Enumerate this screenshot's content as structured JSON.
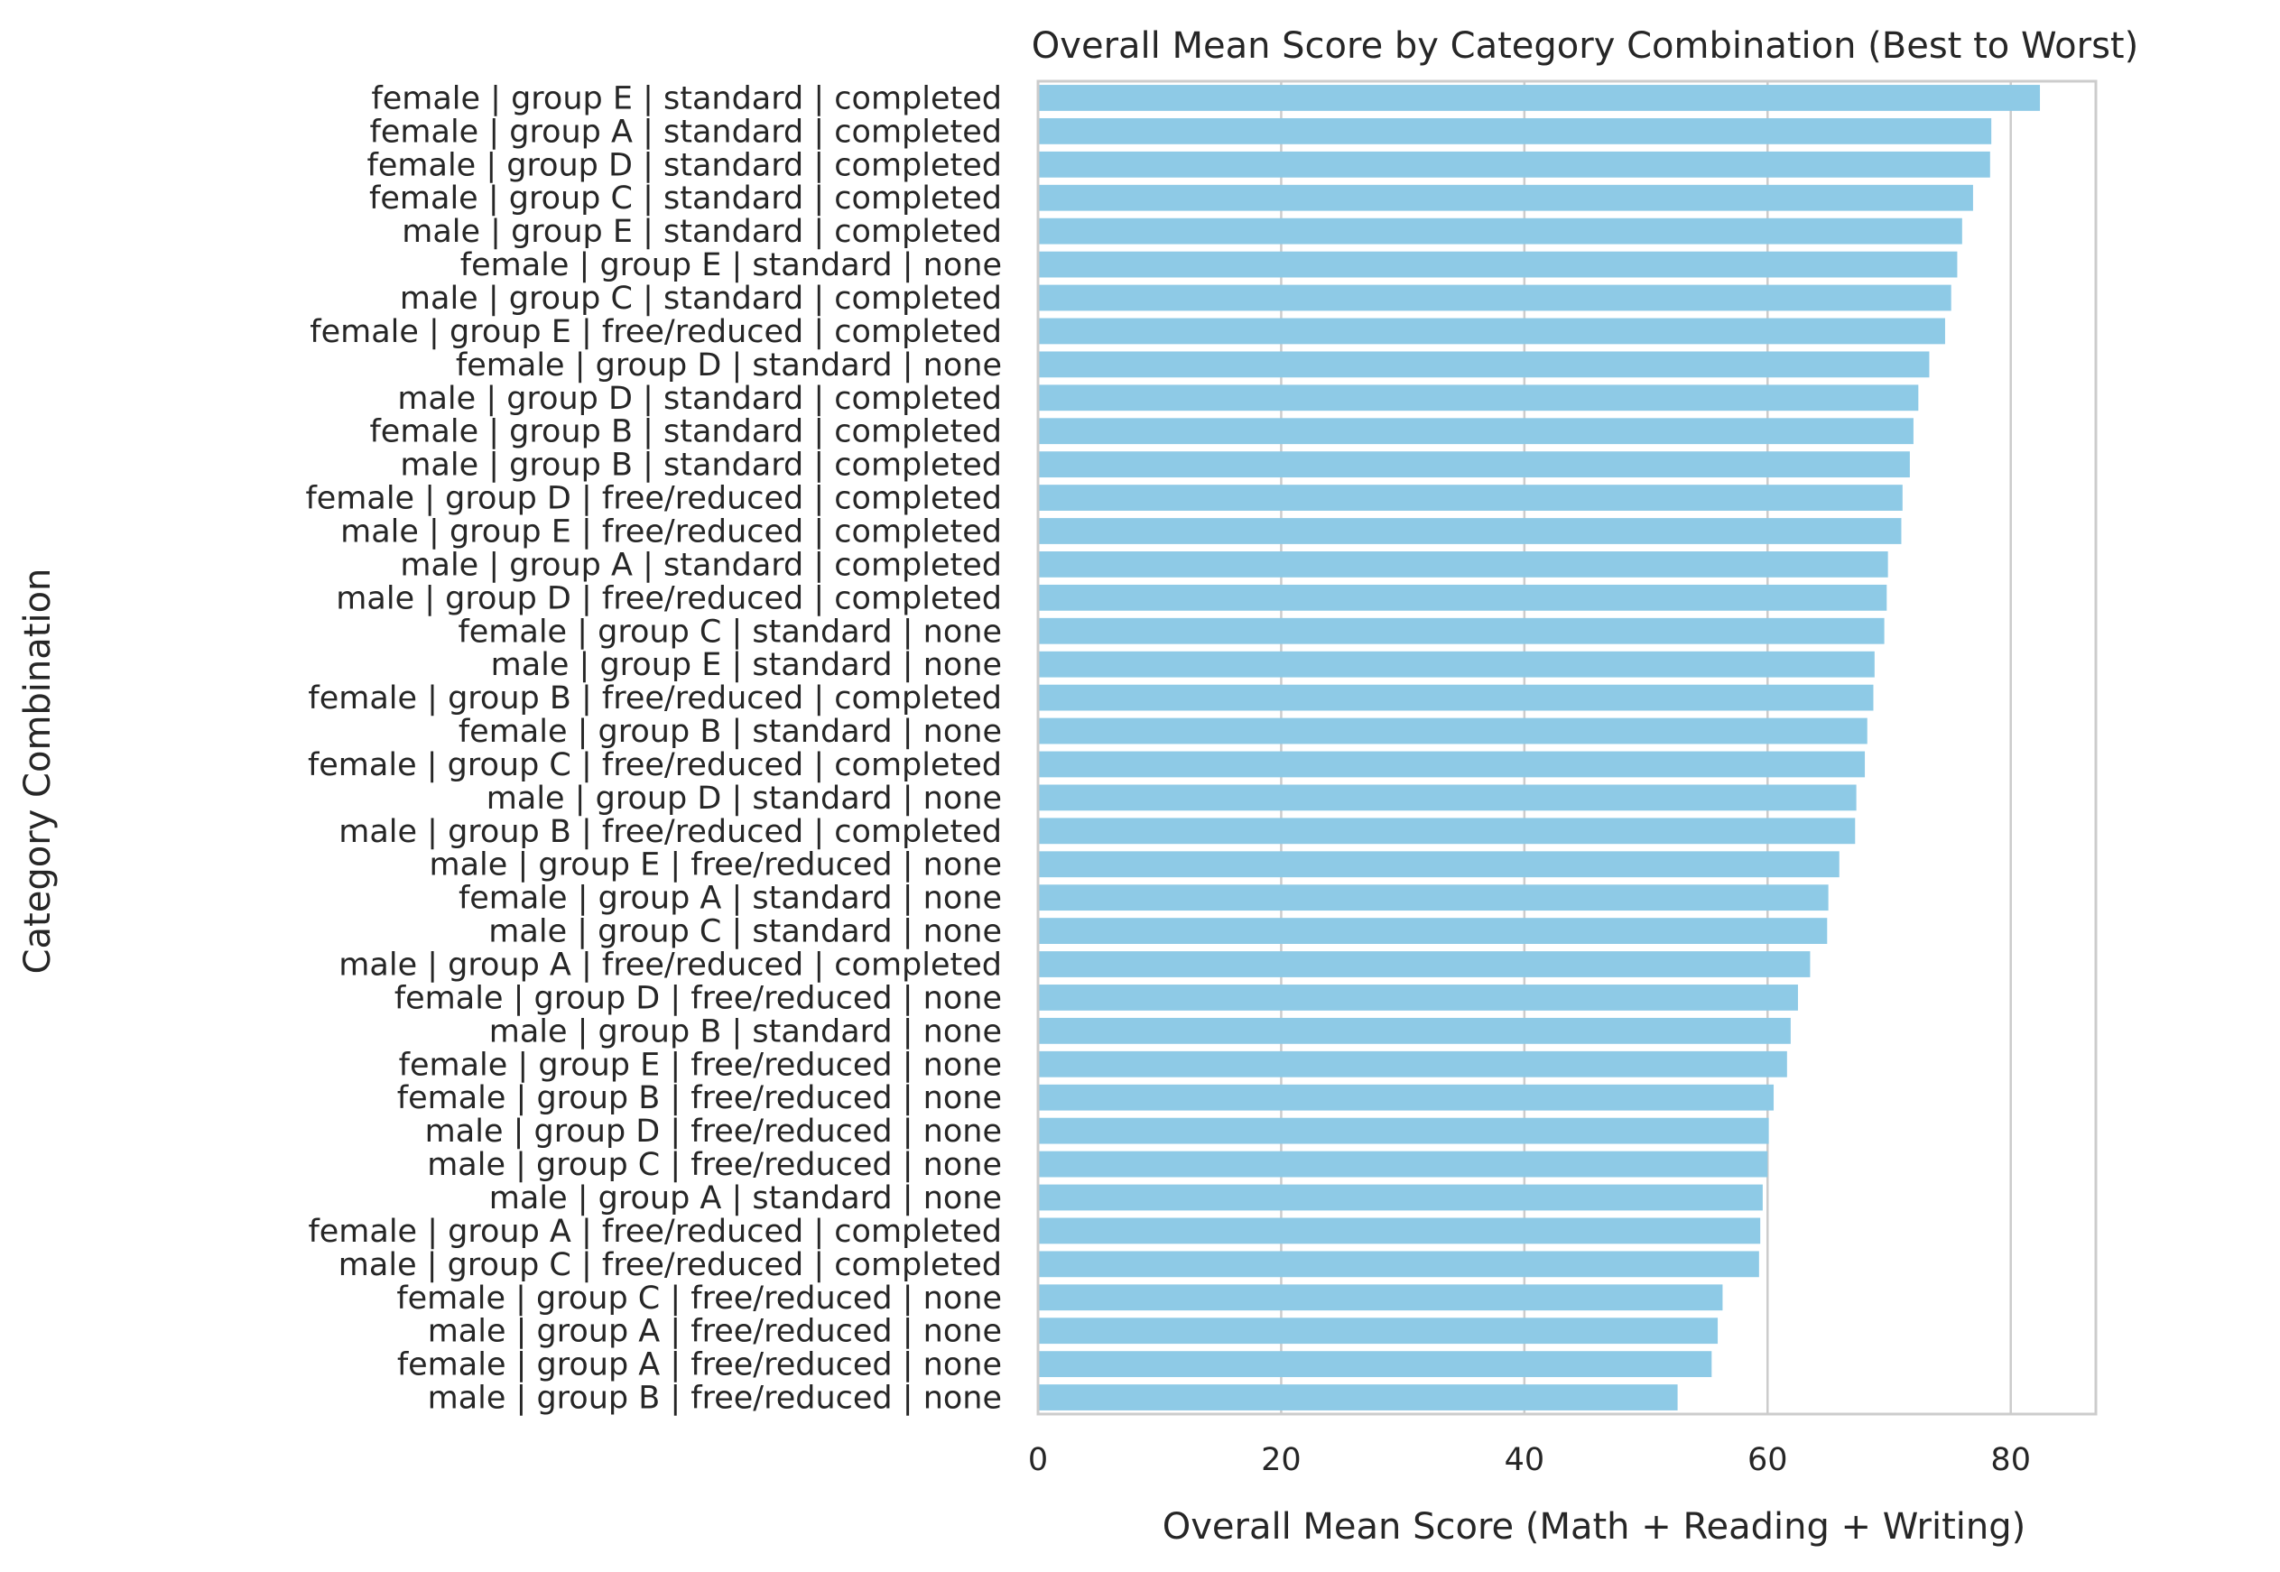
{
  "chart_data": {
    "type": "bar",
    "orientation": "horizontal",
    "title": "Overall Mean Score by Category Combination (Best to Worst)",
    "xlabel": "Overall Mean Score (Math + Reading + Writing)",
    "ylabel": "Category Combination",
    "xlim": [
      0,
      87
    ],
    "xticks": [
      0,
      20,
      40,
      60,
      80
    ],
    "grid": true,
    "bar_color": "#8ecae6",
    "categories": [
      "female | group E | standard | completed",
      "female | group A | standard | completed",
      "female | group D | standard | completed",
      "female | group C | standard | completed",
      "male | group E | standard | completed",
      "female | group E | standard | none",
      "male | group C | standard | completed",
      "female | group E | free/reduced | completed",
      "female | group D | standard | none",
      "male | group D | standard | completed",
      "female | group B | standard | completed",
      "male | group B | standard | completed",
      "female | group D | free/reduced | completed",
      "male | group E | free/reduced | completed",
      "male | group A | standard | completed",
      "male | group D | free/reduced | completed",
      "female | group C | standard | none",
      "male | group E | standard | none",
      "female | group B | free/reduced | completed",
      "female | group B | standard | none",
      "female | group C | free/reduced | completed",
      "male | group D | standard | none",
      "male | group B | free/reduced | completed",
      "male | group E | free/reduced | none",
      "female | group A | standard | none",
      "male | group C | standard | none",
      "male | group A | free/reduced | completed",
      "female | group D | free/reduced | none",
      "male | group B | standard | none",
      "female | group E | free/reduced | none",
      "female | group B | free/reduced | none",
      "male | group D | free/reduced | none",
      "male | group C | free/reduced | none",
      "male | group A | standard | none",
      "female | group A | free/reduced | completed",
      "male | group C | free/reduced | completed",
      "female | group C | free/reduced | none",
      "male | group A | free/reduced | none",
      "female | group A | free/reduced | none",
      "male | group B | free/reduced | none"
    ],
    "values": [
      82.4,
      78.4,
      78.3,
      76.9,
      76.0,
      75.6,
      75.1,
      74.6,
      73.3,
      72.4,
      72.0,
      71.7,
      71.1,
      71.0,
      69.9,
      69.8,
      69.6,
      68.8,
      68.7,
      68.2,
      68.0,
      67.3,
      67.2,
      65.9,
      65.0,
      64.9,
      63.5,
      62.5,
      61.9,
      61.6,
      60.5,
      60.1,
      60.0,
      59.6,
      59.4,
      59.3,
      56.3,
      55.9,
      55.4,
      52.6
    ]
  }
}
